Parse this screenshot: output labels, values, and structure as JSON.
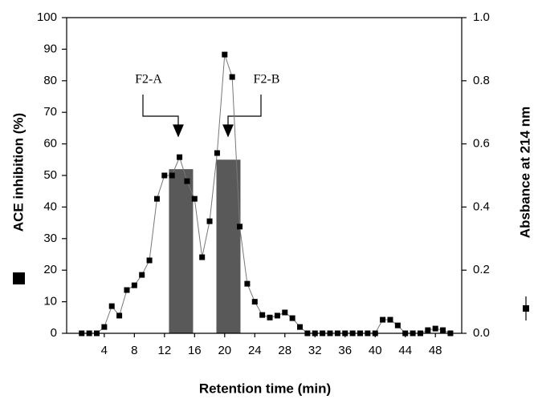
{
  "chart_data": {
    "type": "combo",
    "x_label": "Retention time (min)",
    "y_label": "ACE inhibition (%)",
    "y2_label": "Absbance at 214 nm",
    "annotations": [
      "F2-A",
      "F2-B"
    ],
    "xlim": [
      -1,
      51.5
    ],
    "xticks": [
      4,
      8,
      12,
      16,
      20,
      24,
      28,
      32,
      36,
      40,
      44,
      48
    ],
    "ylim": [
      0,
      100
    ],
    "yticks": [
      0,
      10,
      20,
      30,
      40,
      50,
      60,
      70,
      80,
      90,
      100
    ],
    "y2lim": [
      0,
      1
    ],
    "y2ticks": [
      {
        "value": 0,
        "label": "0.0"
      },
      0.2,
      0.4,
      0.6,
      0.8,
      {
        "value": 1,
        "label": "1.0"
      }
    ],
    "grid": false,
    "series": [
      {
        "type": "bar",
        "color": "#595959",
        "x": [
          14.2,
          20.5
        ],
        "values": [
          52,
          55
        ]
      },
      {
        "type": "line",
        "axis": "y2",
        "color": "#000000",
        "x": [
          1,
          2,
          3,
          4,
          5,
          6,
          7,
          8,
          9,
          10,
          11,
          12,
          13,
          14,
          15,
          16,
          17,
          18,
          19,
          20,
          21,
          22,
          23,
          24,
          25,
          26,
          27,
          28,
          29,
          30,
          31,
          32,
          33,
          34,
          35,
          36,
          37,
          38,
          39,
          40,
          41,
          42,
          43,
          44,
          45,
          46,
          47,
          48,
          49,
          50
        ],
        "values": [
          0,
          0,
          0,
          0.02,
          0.086,
          0.056,
          0.137,
          0.152,
          0.185,
          0.231,
          0.426,
          0.5,
          0.5,
          0.558,
          0.482,
          0.426,
          0.241,
          0.355,
          0.571,
          0.883,
          0.812,
          0.338,
          0.157,
          0.1,
          0.058,
          0.05,
          0.056,
          0.066,
          0.048,
          0.02,
          0,
          0,
          0,
          0,
          0,
          0,
          0,
          0,
          0,
          0,
          0.043,
          0.043,
          0.025,
          0,
          0,
          0,
          0.01,
          0.015,
          0.01,
          0
        ]
      }
    ]
  }
}
